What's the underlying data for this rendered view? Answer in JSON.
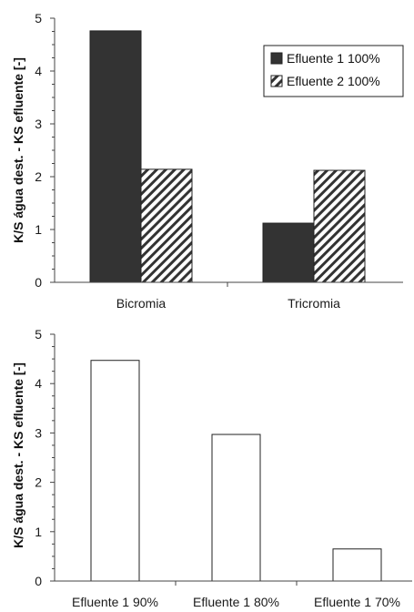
{
  "chart_data": [
    {
      "type": "bar",
      "categories": [
        "Bicromia",
        "Tricromia"
      ],
      "series": [
        {
          "name": "Efluente 1 100%",
          "values": [
            4.76,
            1.12
          ],
          "fill": "solid",
          "color": "#333333"
        },
        {
          "name": "Efluente 2 100%",
          "values": [
            2.14,
            2.12
          ],
          "fill": "hatched",
          "color": "#333333"
        }
      ],
      "ylabel": "K/S água dest. - KS efluente [-]",
      "xlabel": "",
      "ylim": [
        0,
        5
      ],
      "yticks": [
        "0",
        "1",
        "2",
        "3",
        "4",
        "5"
      ],
      "grid": false,
      "legend": "top-right"
    },
    {
      "type": "bar",
      "categories": [
        "Efluente 1 90%",
        "Efluente 1 80%",
        "Efluente 1 70%"
      ],
      "series": [
        {
          "values": [
            4.47,
            2.97,
            0.65
          ],
          "fill": "white",
          "color": "#ffffff"
        }
      ],
      "ylabel": "K/S água dest. - KS efluente [-]",
      "xlabel": "",
      "ylim": [
        0,
        5
      ],
      "yticks": [
        "0",
        "1",
        "2",
        "3",
        "4",
        "5"
      ],
      "grid": false,
      "legend": "none"
    }
  ]
}
